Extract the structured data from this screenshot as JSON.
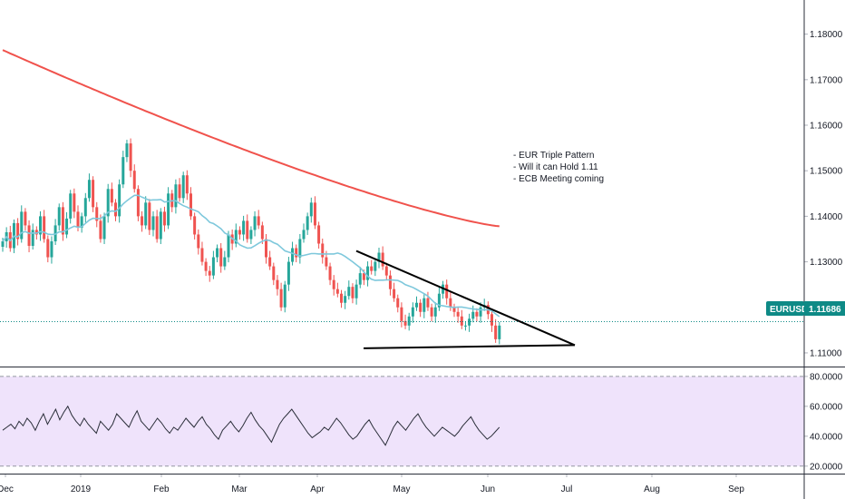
{
  "symbol": "EURUSD",
  "last_price": "1.11686",
  "annotation_lines": [
    "- EUR Triple Pattern",
    "- Will it can Hold 1.11",
    "- ECB Meeting coming"
  ],
  "colors": {
    "bull": "#26a69a",
    "bear": "#ef5350",
    "ma_fast": "#7ec8dc",
    "ma_slow": "#f0524c",
    "rsi_line": "#2a2e39",
    "rsi_band": "#efe3fb",
    "last_price": "#0e8a86"
  },
  "chart_data": [
    {
      "type": "candlestick",
      "x_axis_labels": [
        "Dec",
        "2019",
        "Feb",
        "Mar",
        "Apr",
        "May",
        "Jun",
        "Jul",
        "Aug",
        "Sep"
      ],
      "y_tick_labels": [
        "1.18000",
        "1.17000",
        "1.16000",
        "1.15000",
        "1.14000",
        "1.13000",
        "1.12000",
        "1.11000"
      ],
      "ylim": [
        1.107,
        1.1875
      ],
      "price_series": [
        1.1345,
        1.1365,
        1.133,
        1.1385,
        1.135,
        1.141,
        1.138,
        1.1335,
        1.137,
        1.136,
        1.14,
        1.135,
        1.131,
        1.1345,
        1.138,
        1.142,
        1.136,
        1.1395,
        1.145,
        1.141,
        1.1375,
        1.14,
        1.144,
        1.148,
        1.142,
        1.139,
        1.135,
        1.14,
        1.146,
        1.143,
        1.14,
        1.147,
        1.153,
        1.156,
        1.15,
        1.146,
        1.14,
        1.138,
        1.143,
        1.137,
        1.14,
        1.135,
        1.141,
        1.138,
        1.145,
        1.142,
        1.147,
        1.144,
        1.149,
        1.145,
        1.14,
        1.136,
        1.133,
        1.13,
        1.128,
        1.127,
        1.131,
        1.133,
        1.129,
        1.131,
        1.136,
        1.134,
        1.137,
        1.136,
        1.139,
        1.135,
        1.137,
        1.14,
        1.138,
        1.135,
        1.131,
        1.129,
        1.126,
        1.124,
        1.12,
        1.125,
        1.13,
        1.133,
        1.131,
        1.135,
        1.137,
        1.14,
        1.143,
        1.138,
        1.134,
        1.131,
        1.129,
        1.126,
        1.124,
        1.123,
        1.121,
        1.1225,
        1.1245,
        1.122,
        1.125,
        1.1275,
        1.126,
        1.129,
        1.128,
        1.13,
        1.132,
        1.129,
        1.127,
        1.124,
        1.122,
        1.12,
        1.117,
        1.116,
        1.118,
        1.12,
        1.121,
        1.119,
        1.122,
        1.12,
        1.118,
        1.12,
        1.123,
        1.125,
        1.122,
        1.12,
        1.119,
        1.118,
        1.116,
        1.116,
        1.1175,
        1.119,
        1.118,
        1.12,
        1.1205,
        1.1185,
        1.116,
        1.113,
        1.116
      ],
      "series": [
        {
          "name": "EURUSD"
        }
      ]
    },
    {
      "type": "line",
      "y_tick_labels": [
        "80.0000",
        "60.0000",
        "40.0000",
        "20.0000"
      ],
      "ylim": [
        15,
        86
      ],
      "reference_lines": [
        80,
        20
      ],
      "values": [
        44,
        46,
        48,
        45,
        50,
        47,
        52,
        49,
        44,
        50,
        55,
        48,
        53,
        58,
        51,
        56,
        60,
        54,
        50,
        47,
        52,
        48,
        45,
        42,
        50,
        47,
        44,
        48,
        55,
        52,
        49,
        46,
        52,
        57,
        50,
        47,
        44,
        48,
        52,
        49,
        45,
        42,
        46,
        44,
        48,
        52,
        49,
        46,
        50,
        53,
        48,
        45,
        41,
        38,
        44,
        47,
        50,
        46,
        43,
        47,
        52,
        56,
        51,
        47,
        44,
        40,
        36,
        42,
        48,
        52,
        55,
        58,
        54,
        50,
        46,
        42,
        39,
        41,
        43,
        46,
        44,
        48,
        52,
        49,
        45,
        41,
        38,
        40,
        44,
        48,
        51,
        46,
        42,
        38,
        34,
        40,
        46,
        50,
        47,
        44,
        48,
        52,
        55,
        50,
        46,
        43,
        40,
        43,
        46,
        44,
        42,
        40,
        43,
        47,
        50,
        53,
        48,
        44,
        41,
        38,
        40,
        43,
        46
      ]
    }
  ]
}
